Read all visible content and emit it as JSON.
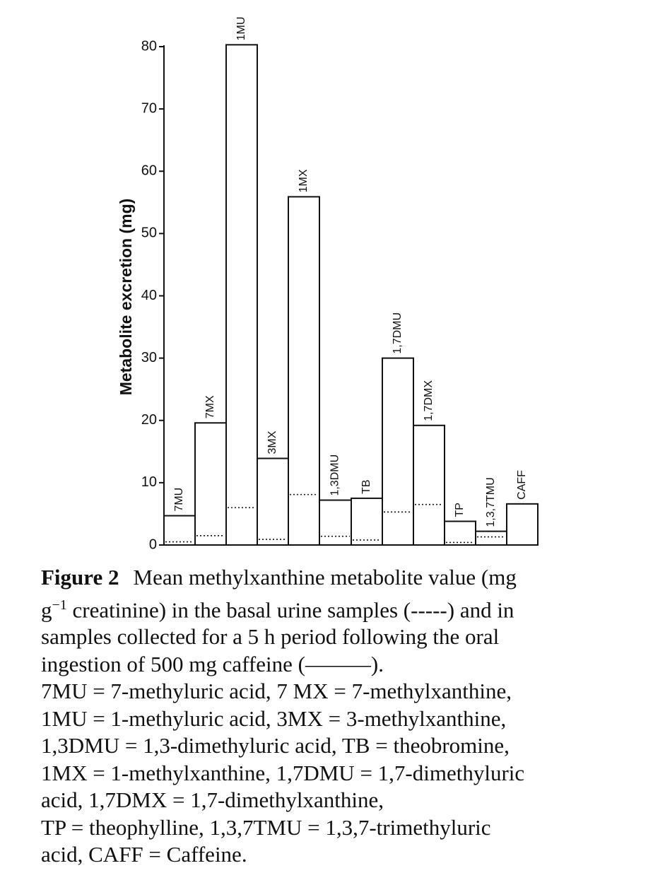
{
  "chart_data": {
    "type": "bar",
    "ylabel": "Metabolite excretion (mg)",
    "ylim": [
      0,
      80
    ],
    "yticks": [
      0,
      10,
      20,
      30,
      40,
      50,
      60,
      70,
      80
    ],
    "categories": [
      "7MU",
      "7MX",
      "1MU",
      "3MX",
      "1MX",
      "1,3DMU",
      "TB",
      "1,7DMU",
      "1,7DMX",
      "TP",
      "1,3,7TMU",
      "CAFF"
    ],
    "series": [
      {
        "name": "5 h after oral caffeine",
        "style": "solid",
        "values": [
          4.7,
          19.6,
          80.3,
          13.9,
          55.9,
          7.2,
          7.5,
          30.0,
          19.2,
          3.8,
          2.2,
          6.6
        ]
      },
      {
        "name": "basal",
        "style": "dotted",
        "values": [
          0.5,
          1.5,
          6.0,
          0.9,
          8.1,
          1.4,
          0.8,
          5.3,
          6.5,
          0.4,
          1.3,
          6.6
        ]
      }
    ]
  },
  "caption": {
    "label": "Figure 2",
    "lines": [
      "Mean methylxanthine metabolite value (mg",
      "creatinine) in the basal urine samples (-----) and in",
      "samples collected for a 5 h period following the oral",
      "ingestion of 500 mg caffeine (———).",
      "7MU = 7-methyluric acid, 7 MX = 7-methylxanthine,",
      "1MU = 1-methyluric acid, 3MX = 3-methylxanthine,",
      "1,3DMU = 1,3-dimethyluric acid, TB = theobromine,",
      "1MX = 1-methylxanthine, 1,7DMU = 1,7-dimethyluric",
      "acid, 1,7DMX = 1,7-dimethylxanthine,",
      "TP = theophylline, 1,3,7TMU = 1,3,7-trimethyluric",
      "acid, CAFF = Caffeine."
    ],
    "unit_prefix": "g",
    "unit_exponent": "−1"
  }
}
